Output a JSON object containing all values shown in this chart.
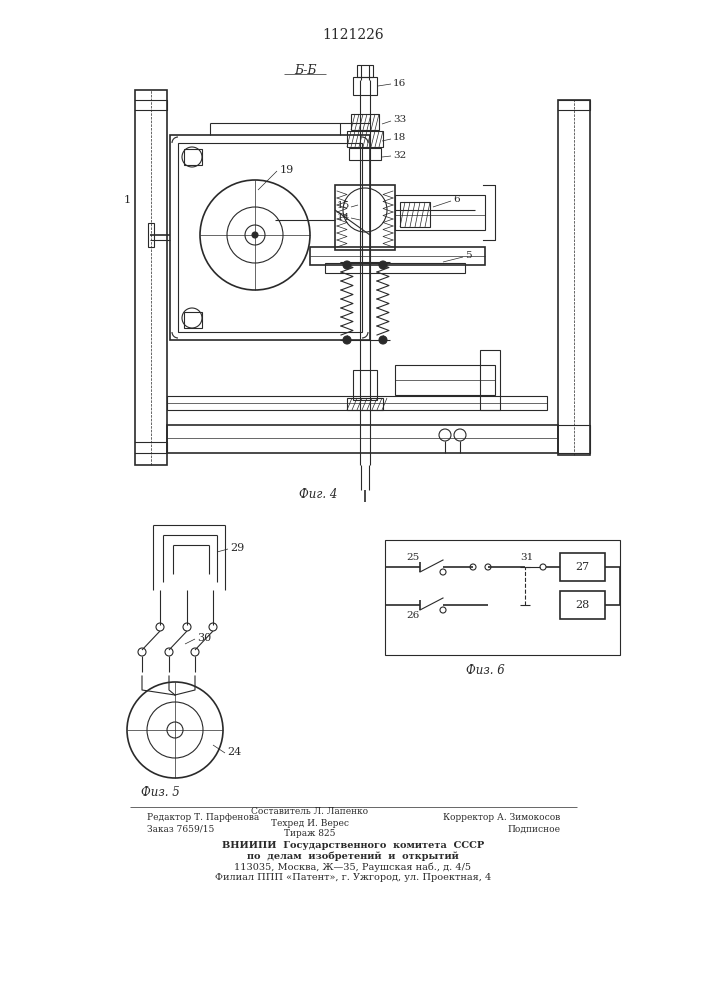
{
  "title": "1121226",
  "bg_color": "#ffffff",
  "line_color": "#2a2a2a",
  "fig4_label": "Фиг. 4",
  "fig5_label": "Физ. 5",
  "fig6_label": "Физ. 6",
  "section_label": "Б-Б",
  "footer_col1_line1": "Редактор Т. Парфенова",
  "footer_col1_line2": "Заказ 7659/15",
  "footer_col2_line1": "Составитель Л. Лапенко",
  "footer_col2_line2": "Техред И. Верес",
  "footer_col2_line3": "Тираж 825",
  "footer_col3_line1": "Корректор А. Зимокосов",
  "footer_col3_line2": "Подписное",
  "footer_vniip1": "ВНИИПИ  Государственного  комитета  СССР",
  "footer_vniip2": "по  делам  изобретений  и  открытий",
  "footer_vniip3": "113035, Москва, Ж—35, Раушская наб., д. 4/5",
  "footer_vniip4": "Филиал ППП «Патент», г. Ужгород, ул. Проектная, 4"
}
